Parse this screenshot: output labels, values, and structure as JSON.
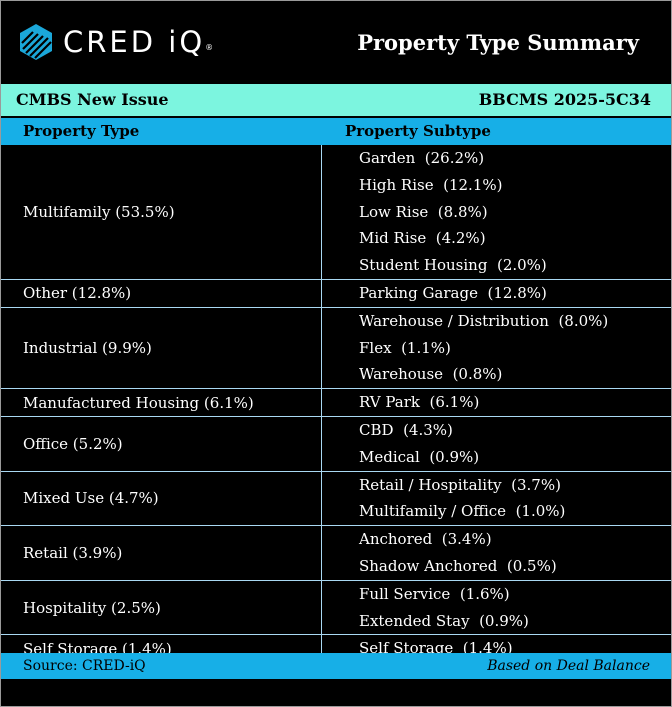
{
  "header": {
    "brand": "CRED iQ",
    "brand_mark": "®",
    "title": "Property Type Summary"
  },
  "deal": {
    "label": "CMBS New Issue",
    "name": "BBCMS 2025-5C34"
  },
  "columns": {
    "type": "Property Type",
    "subtype": "Property Subtype"
  },
  "groups": [
    {
      "type": "Multifamily (53.5%)",
      "subtypes": [
        "Garden  (26.2%)",
        "High Rise  (12.1%)",
        "Low Rise  (8.8%)",
        "Mid Rise  (4.2%)",
        "Student Housing  (2.0%)"
      ]
    },
    {
      "type": "Other (12.8%)",
      "subtypes": [
        "Parking Garage  (12.8%)"
      ]
    },
    {
      "type": "Industrial (9.9%)",
      "subtypes": [
        "Warehouse / Distribution  (8.0%)",
        "Flex  (1.1%)",
        "Warehouse  (0.8%)"
      ]
    },
    {
      "type": "Manufactured Housing (6.1%)",
      "subtypes": [
        "RV Park  (6.1%)"
      ]
    },
    {
      "type": "Office (5.2%)",
      "subtypes": [
        "CBD  (4.3%)",
        "Medical  (0.9%)"
      ]
    },
    {
      "type": "Mixed Use (4.7%)",
      "subtypes": [
        "Retail / Hospitality  (3.7%)",
        "Multifamily / Office  (1.0%)"
      ]
    },
    {
      "type": "Retail (3.9%)",
      "subtypes": [
        "Anchored  (3.4%)",
        "Shadow Anchored  (0.5%)"
      ]
    },
    {
      "type": "Hospitality (2.5%)",
      "subtypes": [
        "Full Service  (1.6%)",
        "Extended Stay  (0.9%)"
      ]
    },
    {
      "type": "Self Storage (1.4%)",
      "subtypes": [
        "Self Storage  (1.4%)"
      ]
    }
  ],
  "footer": {
    "source": "Source:  CRED-iQ",
    "basis": "Based on Deal Balance"
  },
  "icons": {
    "logo": "cred-iq-logo-icon"
  }
}
